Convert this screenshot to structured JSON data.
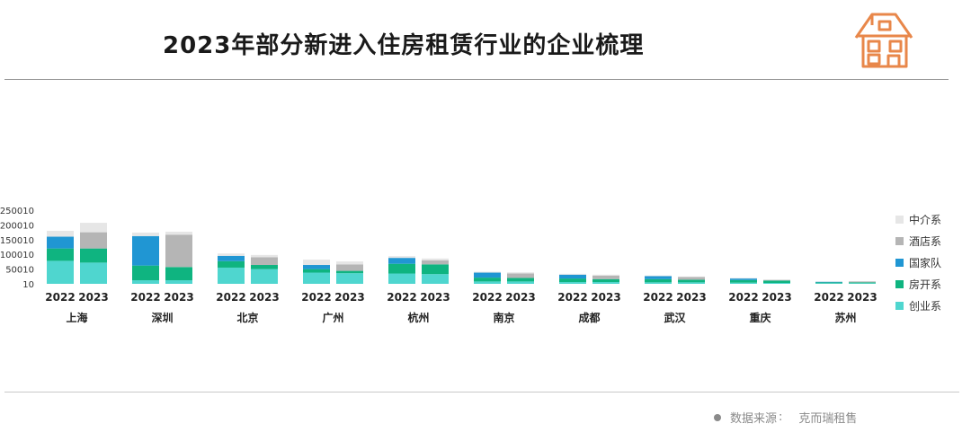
{
  "header": {
    "title": "2023年部分新进入住房租赁行业的企业梳理"
  },
  "footer": {
    "source_label": "数据来源",
    "source_sep": ":",
    "source_value": "克而瑞租售"
  },
  "colors": {
    "中介系": "#e6e6e6",
    "酒店系": "#b5b5b5",
    "国家队": "#2096d3",
    "房开系": "#0fb480",
    "创业系": "#4fd6cf",
    "accent": "#e8874a"
  },
  "chart_data": {
    "type": "bar",
    "stacked": true,
    "title": "2023年部分新进入住房租赁行业的企业梳理",
    "cities": [
      "上海",
      "深圳",
      "北京",
      "广州",
      "杭州",
      "南京",
      "成都",
      "武汉",
      "重庆",
      "苏州"
    ],
    "years": [
      "2022",
      "2023"
    ],
    "yticks": [
      250010,
      200010,
      150010,
      100010,
      50010,
      10
    ],
    "ylim": [
      0,
      250010
    ],
    "series": [
      {
        "name": "创业系",
        "values": [
          [
            78000,
            72000
          ],
          [
            12000,
            12000
          ],
          [
            55000,
            50000
          ],
          [
            38000,
            36000
          ],
          [
            35000,
            33000
          ],
          [
            8000,
            8000
          ],
          [
            6000,
            6000
          ],
          [
            5000,
            5000
          ],
          [
            4000,
            3000
          ],
          [
            2000,
            2000
          ]
        ]
      },
      {
        "name": "房开系",
        "values": [
          [
            42000,
            48000
          ],
          [
            50000,
            45000
          ],
          [
            22000,
            14000
          ],
          [
            12000,
            8000
          ],
          [
            33000,
            33000
          ],
          [
            13000,
            12000
          ],
          [
            12000,
            10000
          ],
          [
            11000,
            9000
          ],
          [
            9000,
            8000
          ],
          [
            3000,
            3000
          ]
        ]
      },
      {
        "name": "国家队",
        "values": [
          [
            40000,
            0
          ],
          [
            100000,
            0
          ],
          [
            18000,
            0
          ],
          [
            14000,
            0
          ],
          [
            20000,
            0
          ],
          [
            17000,
            0
          ],
          [
            13000,
            0
          ],
          [
            10000,
            0
          ],
          [
            5000,
            0
          ],
          [
            2000,
            0
          ]
        ]
      },
      {
        "name": "酒店系",
        "values": [
          [
            0,
            55000
          ],
          [
            0,
            110000
          ],
          [
            0,
            26000
          ],
          [
            0,
            22000
          ],
          [
            0,
            14000
          ],
          [
            0,
            15000
          ],
          [
            0,
            12000
          ],
          [
            0,
            9000
          ],
          [
            0,
            2000
          ],
          [
            0,
            3000
          ]
        ]
      },
      {
        "name": "中介系",
        "values": [
          [
            20000,
            32000
          ],
          [
            12000,
            10000
          ],
          [
            8000,
            8000
          ],
          [
            18000,
            10000
          ],
          [
            6000,
            6000
          ],
          [
            3000,
            4000
          ],
          [
            3000,
            3000
          ],
          [
            2000,
            2000
          ],
          [
            2000,
            2000
          ],
          [
            1000,
            1000
          ]
        ]
      }
    ],
    "legend_order": [
      "中介系",
      "酒店系",
      "国家队",
      "房开系",
      "创业系"
    ],
    "legend_position": "right",
    "grid": false
  }
}
